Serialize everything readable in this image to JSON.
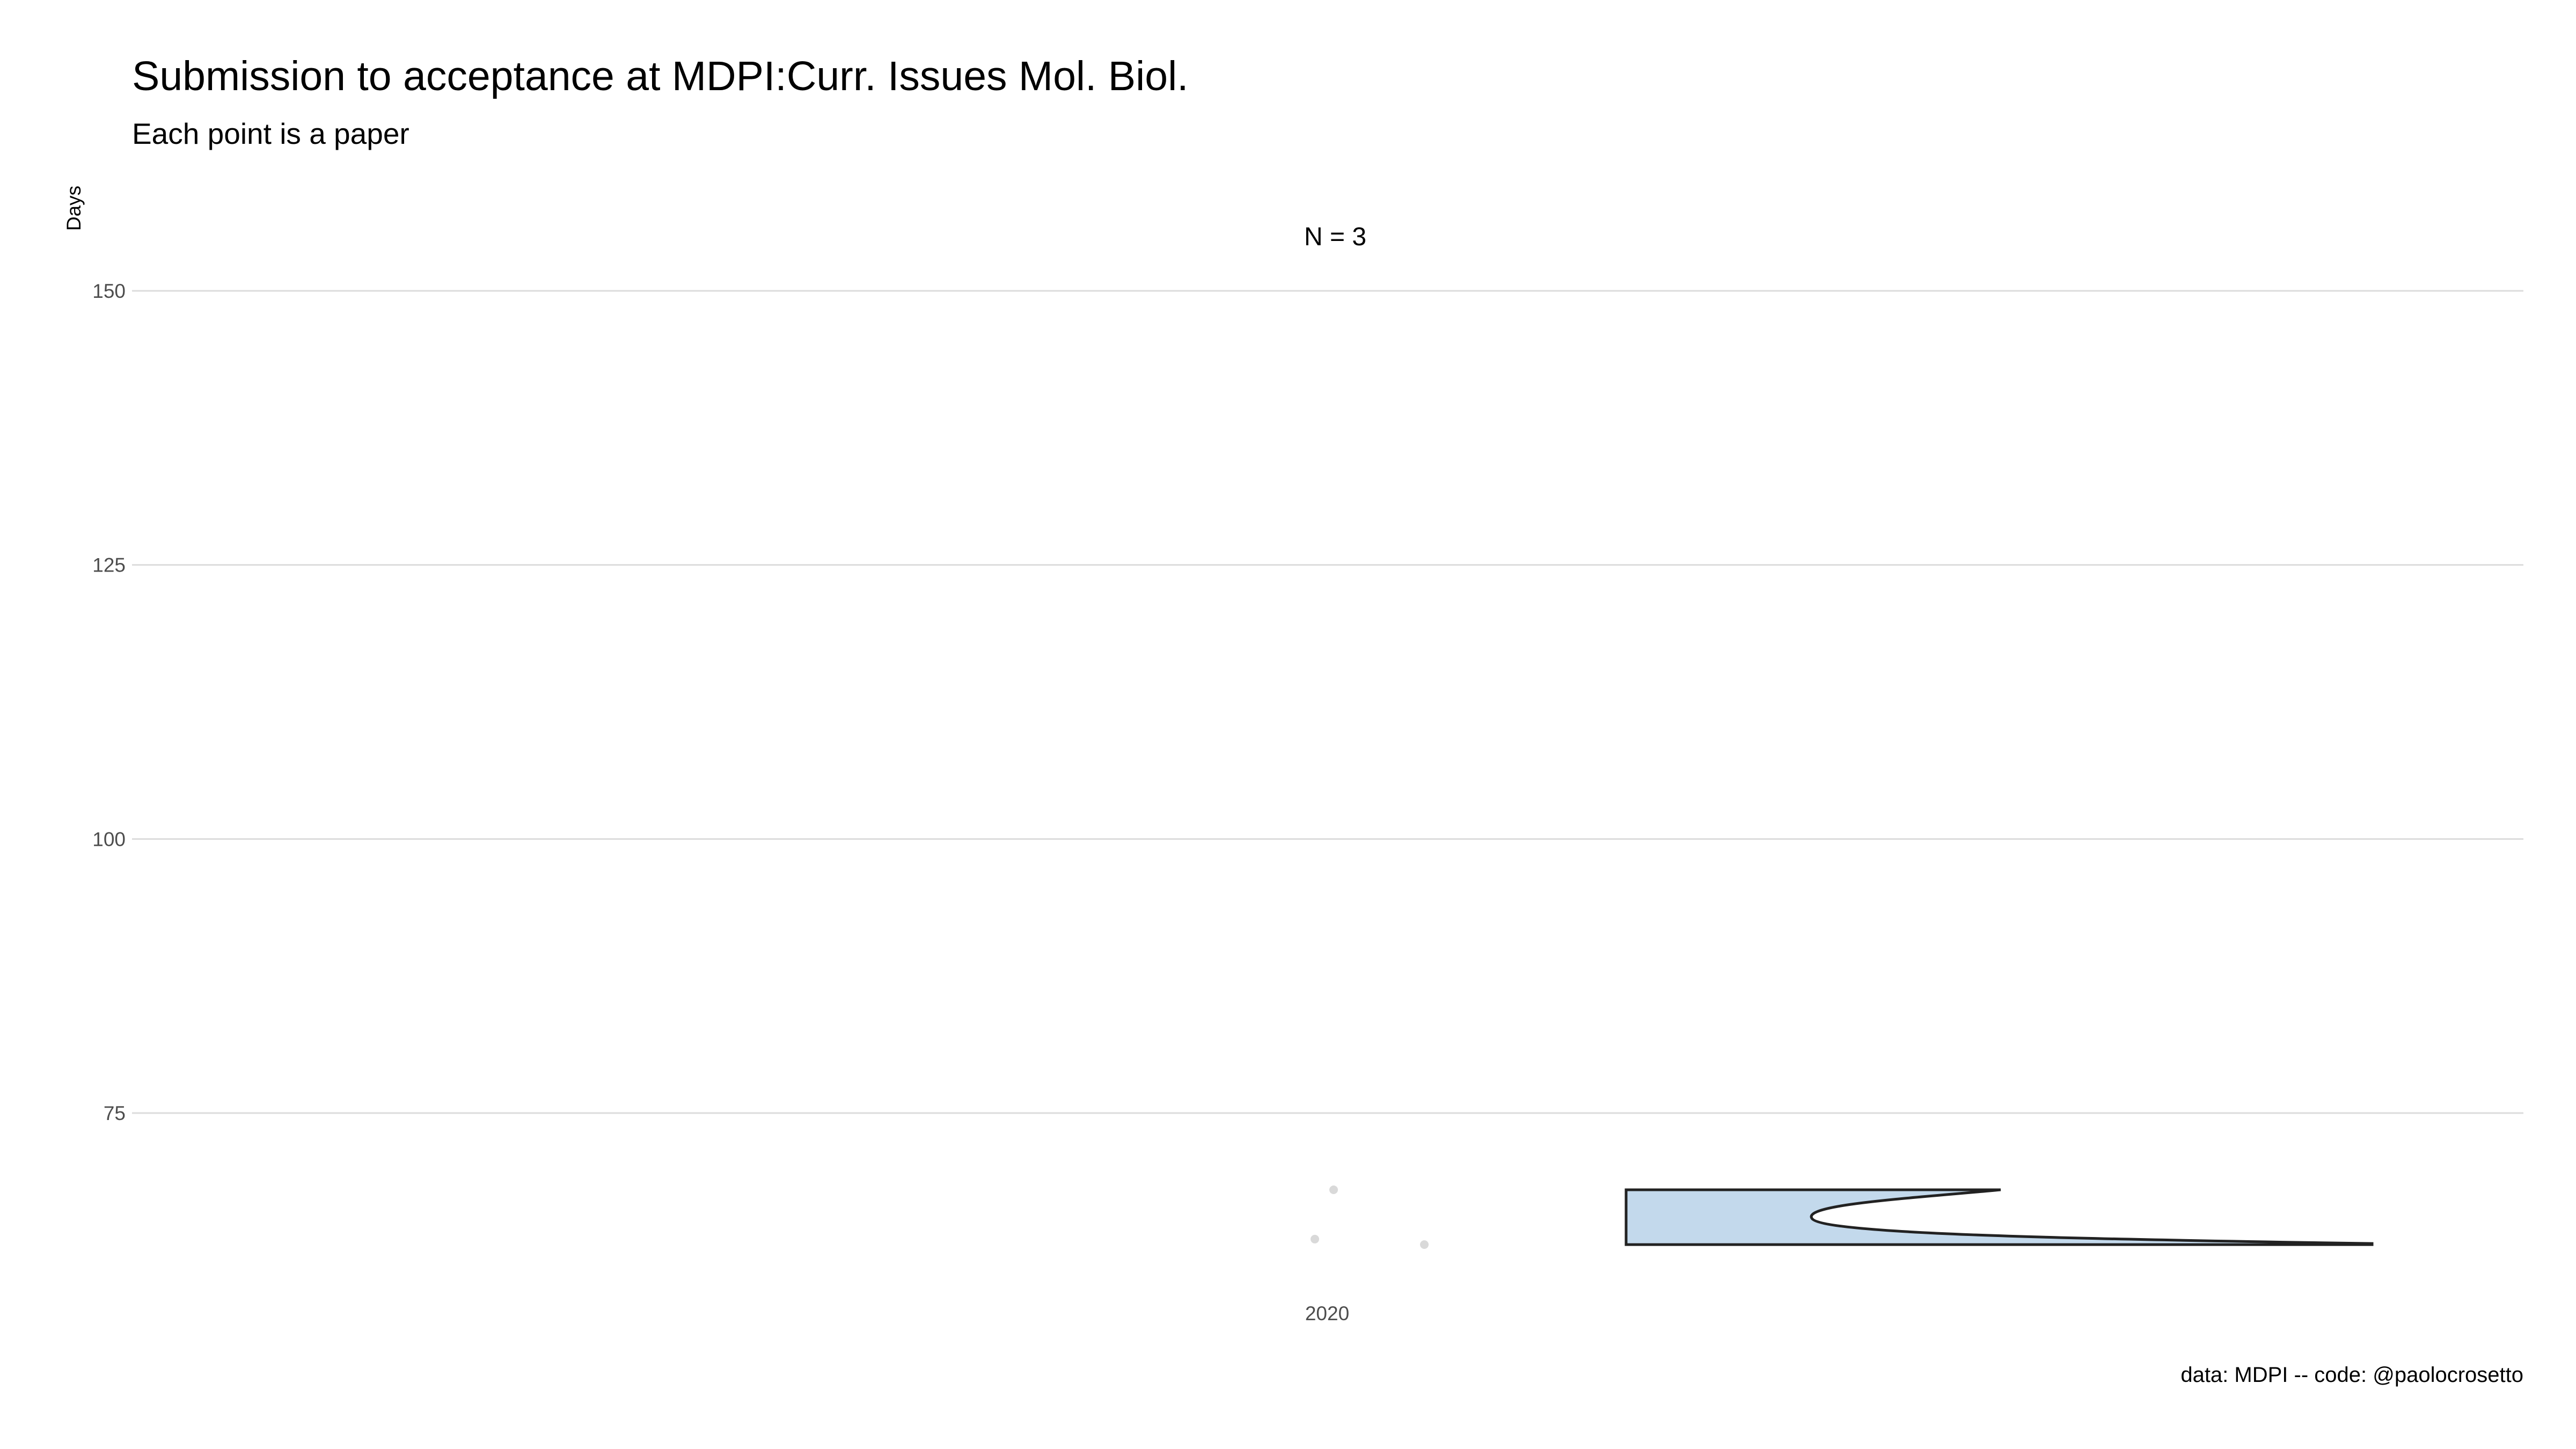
{
  "title": "Submission to acceptance at MDPI:Curr. Issues Mol. Biol.",
  "subtitle": "Each point is a paper",
  "caption": "data: MDPI -- code: @paolocrosetto",
  "chart_data": {
    "type": "scatter",
    "title": "Submission to acceptance at MDPI:Curr. Issues Mol. Biol.",
    "subtitle": "Each point is a paper",
    "ylabel": "Days",
    "xlabel": "",
    "ylim": [
      59,
      150
    ],
    "yticks": [
      75,
      100,
      125,
      150
    ],
    "categories": [
      "2020"
    ],
    "facet_label": "N = 3",
    "grid": "horizontal major",
    "points": [
      {
        "x": "2020",
        "y": 68
      },
      {
        "x": "2020",
        "y": 63.5
      },
      {
        "x": "2020",
        "y": 63
      }
    ],
    "density": {
      "x": "2020",
      "range": [
        63,
        68
      ],
      "fill": "#c3d9ec",
      "stroke": "#222222"
    },
    "point_color": "#d9d9d9"
  }
}
